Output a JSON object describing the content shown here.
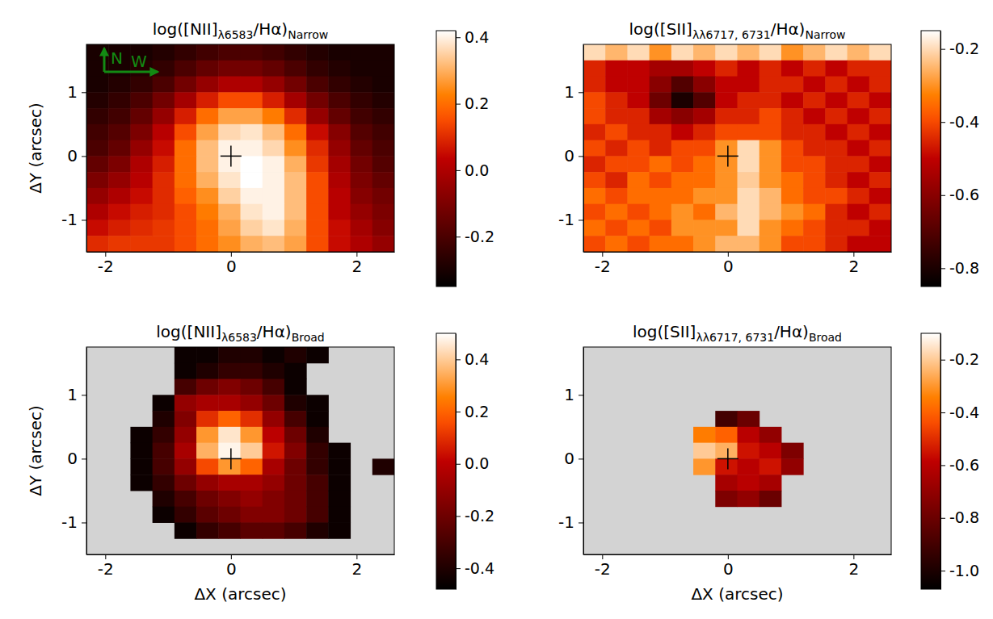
{
  "chart_data": [
    {
      "type": "heatmap",
      "title": [
        "log([NII]",
        "λ6583",
        "/Hα)",
        "Narrow"
      ],
      "ylabel": "ΔY (arcsec)",
      "annotations": [
        "N",
        "W"
      ],
      "xlim": [
        -2.3,
        2.6
      ],
      "ylim": [
        -1.5,
        1.75
      ],
      "xticks": [
        -2,
        0,
        2
      ],
      "yticks": [
        -1,
        0,
        1
      ],
      "center": [
        0,
        0
      ],
      "x_edges": [
        -2.3,
        -1.95,
        -1.6,
        -1.25,
        -0.9,
        -0.55,
        -0.2,
        0.15,
        0.5,
        0.85,
        1.2,
        1.55,
        1.9,
        2.25,
        2.6
      ],
      "y_edges": [
        1.75,
        1.5,
        1.25,
        1.0,
        0.75,
        0.5,
        0.25,
        0.0,
        -0.25,
        -0.5,
        -0.75,
        -1.0,
        -1.25,
        -1.5
      ],
      "cells": [
        [
          -0.3,
          -0.3,
          -0.3,
          -0.28,
          -0.25,
          -0.22,
          -0.2,
          -0.2,
          -0.22,
          -0.25,
          -0.28,
          -0.3,
          -0.3,
          -0.3
        ],
        [
          -0.3,
          -0.3,
          -0.28,
          -0.25,
          -0.2,
          -0.15,
          -0.12,
          -0.12,
          -0.15,
          -0.2,
          -0.25,
          -0.28,
          -0.3,
          -0.3
        ],
        [
          -0.3,
          -0.28,
          -0.25,
          -0.2,
          -0.12,
          -0.05,
          0.0,
          0.0,
          -0.05,
          -0.12,
          -0.2,
          -0.25,
          -0.28,
          -0.3
        ],
        [
          -0.28,
          -0.25,
          -0.2,
          -0.12,
          -0.02,
          0.08,
          0.15,
          0.15,
          0.08,
          -0.02,
          -0.12,
          -0.2,
          -0.25,
          -0.28
        ],
        [
          -0.25,
          -0.22,
          -0.15,
          -0.05,
          0.08,
          0.2,
          0.28,
          0.28,
          0.22,
          0.1,
          -0.05,
          -0.15,
          -0.22,
          -0.25
        ],
        [
          -0.22,
          -0.18,
          -0.1,
          0.02,
          0.15,
          0.28,
          0.36,
          0.38,
          0.32,
          0.2,
          0.05,
          -0.08,
          -0.18,
          -0.22
        ],
        [
          -0.2,
          -0.15,
          -0.05,
          0.05,
          0.2,
          0.32,
          0.4,
          0.4,
          0.36,
          0.25,
          0.1,
          -0.05,
          -0.15,
          -0.2
        ],
        [
          -0.15,
          -0.1,
          0.0,
          0.08,
          0.2,
          0.32,
          0.4,
          0.42,
          0.4,
          0.3,
          0.12,
          -0.02,
          -0.12,
          -0.18
        ],
        [
          -0.1,
          -0.05,
          0.02,
          0.1,
          0.2,
          0.3,
          0.38,
          0.42,
          0.4,
          0.32,
          0.15,
          0.0,
          -0.1,
          -0.15
        ],
        [
          -0.05,
          0.0,
          0.05,
          0.1,
          0.18,
          0.25,
          0.35,
          0.4,
          0.4,
          0.32,
          0.15,
          0.02,
          -0.08,
          -0.12
        ],
        [
          0.0,
          0.05,
          0.08,
          0.1,
          0.15,
          0.22,
          0.3,
          0.38,
          0.4,
          0.32,
          0.15,
          0.02,
          -0.05,
          -0.1
        ],
        [
          0.05,
          0.08,
          0.1,
          0.12,
          0.15,
          0.2,
          0.28,
          0.35,
          0.38,
          0.3,
          0.15,
          0.05,
          -0.02,
          -0.08
        ],
        [
          0.1,
          0.12,
          0.12,
          0.12,
          0.15,
          0.2,
          0.25,
          0.3,
          0.32,
          0.28,
          0.15,
          0.05,
          0.0,
          -0.05
        ]
      ],
      "colorbar_lim": [
        -0.35,
        0.42
      ],
      "colorbar_ticks": [
        -0.2,
        {
          "value": 0,
          "label": "0.0"
        },
        0.2,
        0.4
      ]
    },
    {
      "type": "heatmap",
      "title": [
        "log([SII]",
        "λλ6717, 6731",
        "/Hα)",
        "Narrow"
      ],
      "xlim": [
        -2.3,
        2.6
      ],
      "ylim": [
        -1.5,
        1.75
      ],
      "xticks": [
        -2,
        0,
        2
      ],
      "yticks": [
        -1,
        0,
        1
      ],
      "center": [
        0,
        0
      ],
      "x_edges": [
        -2.3,
        -1.95,
        -1.6,
        -1.25,
        -0.9,
        -0.55,
        -0.2,
        0.15,
        0.5,
        0.85,
        1.2,
        1.55,
        1.9,
        2.25,
        2.6
      ],
      "y_edges": [
        1.75,
        1.5,
        1.25,
        1.0,
        0.75,
        0.5,
        0.25,
        0.0,
        -0.25,
        -0.5,
        -0.75,
        -1.0,
        -1.25,
        -1.5
      ],
      "cells": [
        [
          -0.2,
          -0.25,
          -0.2,
          -0.3,
          -0.2,
          -0.25,
          -0.2,
          -0.25,
          -0.2,
          -0.3,
          -0.25,
          -0.2,
          -0.25,
          -0.2
        ],
        [
          -0.45,
          -0.5,
          -0.5,
          -0.55,
          -0.55,
          -0.5,
          -0.45,
          -0.5,
          -0.45,
          -0.5,
          -0.45,
          -0.5,
          -0.45,
          -0.45
        ],
        [
          -0.45,
          -0.5,
          -0.5,
          -0.6,
          -0.7,
          -0.6,
          -0.5,
          -0.5,
          -0.45,
          -0.45,
          -0.5,
          -0.45,
          -0.5,
          -0.45
        ],
        [
          -0.4,
          -0.45,
          -0.5,
          -0.65,
          -0.8,
          -0.7,
          -0.5,
          -0.45,
          -0.45,
          -0.5,
          -0.45,
          -0.5,
          -0.45,
          -0.5
        ],
        [
          -0.4,
          -0.45,
          -0.45,
          -0.55,
          -0.6,
          -0.55,
          -0.45,
          -0.45,
          -0.4,
          -0.45,
          -0.5,
          -0.45,
          -0.5,
          -0.45
        ],
        [
          -0.45,
          -0.4,
          -0.45,
          -0.45,
          -0.5,
          -0.45,
          -0.4,
          -0.4,
          -0.4,
          -0.45,
          -0.45,
          -0.5,
          -0.45,
          -0.5
        ],
        [
          -0.4,
          -0.45,
          -0.4,
          -0.45,
          -0.4,
          -0.4,
          -0.3,
          -0.2,
          -0.3,
          -0.4,
          -0.45,
          -0.45,
          -0.5,
          -0.45
        ],
        [
          -0.45,
          -0.4,
          -0.4,
          -0.35,
          -0.4,
          -0.35,
          -0.3,
          -0.2,
          -0.3,
          -0.4,
          -0.4,
          -0.45,
          -0.45,
          -0.5
        ],
        [
          -0.4,
          -0.45,
          -0.35,
          -0.4,
          -0.35,
          -0.35,
          -0.3,
          -0.22,
          -0.3,
          -0.35,
          -0.4,
          -0.45,
          -0.5,
          -0.45
        ],
        [
          -0.35,
          -0.4,
          -0.35,
          -0.35,
          -0.35,
          -0.3,
          -0.3,
          -0.2,
          -0.25,
          -0.35,
          -0.4,
          -0.4,
          -0.45,
          -0.5
        ],
        [
          -0.4,
          -0.35,
          -0.4,
          -0.35,
          -0.3,
          -0.35,
          -0.25,
          -0.2,
          -0.25,
          -0.3,
          -0.35,
          -0.45,
          -0.5,
          -0.45
        ],
        [
          -0.35,
          -0.4,
          -0.35,
          -0.4,
          -0.3,
          -0.3,
          -0.3,
          -0.2,
          -0.3,
          -0.35,
          -0.4,
          -0.45,
          -0.45,
          -0.5
        ],
        [
          -0.4,
          -0.35,
          -0.4,
          -0.35,
          -0.35,
          -0.3,
          -0.25,
          -0.25,
          -0.3,
          -0.4,
          -0.4,
          -0.45,
          -0.5,
          -0.5
        ]
      ],
      "colorbar_lim": [
        -0.85,
        -0.15
      ],
      "colorbar_ticks": [
        -0.8,
        -0.6,
        -0.4,
        -0.2
      ]
    },
    {
      "type": "heatmap",
      "title": [
        "log([NII]",
        "λ6583",
        "/Hα)",
        "Broad"
      ],
      "xlabel": "ΔX (arcsec)",
      "ylabel": "ΔY (arcsec)",
      "xlim": [
        -2.3,
        2.6
      ],
      "ylim": [
        -1.5,
        1.75
      ],
      "xticks": [
        -2,
        0,
        2
      ],
      "yticks": [
        -1,
        0,
        1
      ],
      "center": [
        0,
        0
      ],
      "x_edges": [
        -2.3,
        -1.95,
        -1.6,
        -1.25,
        -0.9,
        -0.55,
        -0.2,
        0.15,
        0.5,
        0.85,
        1.2,
        1.55,
        1.9,
        2.25,
        2.6
      ],
      "y_edges": [
        1.75,
        1.5,
        1.25,
        1.0,
        0.75,
        0.5,
        0.25,
        0.0,
        -0.25,
        -0.5,
        -0.75,
        -1.0,
        -1.25,
        -1.5
      ],
      "cells": [
        [
          null,
          null,
          null,
          null,
          -0.45,
          -0.45,
          -0.4,
          -0.4,
          -0.45,
          -0.4,
          -0.45,
          null,
          null,
          null
        ],
        [
          null,
          null,
          null,
          null,
          -0.45,
          -0.4,
          -0.35,
          -0.35,
          -0.4,
          -0.45,
          null,
          null,
          null,
          null
        ],
        [
          null,
          null,
          null,
          null,
          -0.3,
          -0.2,
          -0.15,
          -0.2,
          -0.3,
          -0.45,
          null,
          null,
          null,
          null
        ],
        [
          null,
          null,
          null,
          -0.45,
          -0.1,
          -0.05,
          -0.05,
          -0.1,
          -0.2,
          -0.4,
          -0.45,
          null,
          null,
          null
        ],
        [
          null,
          null,
          null,
          -0.4,
          -0.15,
          0.1,
          0.2,
          0.1,
          -0.1,
          -0.3,
          -0.45,
          null,
          null,
          null
        ],
        [
          null,
          null,
          -0.45,
          -0.35,
          -0.1,
          0.3,
          0.45,
          0.3,
          0.0,
          -0.2,
          -0.4,
          null,
          null,
          null
        ],
        [
          null,
          null,
          -0.45,
          -0.3,
          -0.05,
          0.35,
          0.48,
          0.4,
          0.05,
          -0.15,
          -0.35,
          -0.45,
          null,
          null
        ],
        [
          null,
          null,
          -0.45,
          -0.3,
          -0.1,
          0.15,
          0.3,
          0.2,
          -0.05,
          -0.2,
          -0.35,
          -0.45,
          null,
          -0.4
        ],
        [
          null,
          null,
          -0.45,
          -0.35,
          -0.2,
          -0.1,
          -0.05,
          -0.05,
          -0.1,
          -0.2,
          -0.3,
          -0.45,
          null,
          null
        ],
        [
          null,
          null,
          null,
          -0.4,
          -0.3,
          -0.2,
          -0.15,
          -0.1,
          -0.15,
          -0.2,
          -0.3,
          -0.45,
          null,
          null
        ],
        [
          null,
          null,
          null,
          -0.45,
          -0.35,
          -0.25,
          -0.2,
          -0.15,
          -0.15,
          -0.2,
          -0.3,
          -0.45,
          null,
          null
        ],
        [
          null,
          null,
          null,
          null,
          -0.45,
          -0.35,
          -0.3,
          -0.25,
          -0.25,
          -0.3,
          -0.4,
          -0.45,
          null,
          null
        ],
        [
          null,
          null,
          null,
          null,
          null,
          null,
          null,
          null,
          null,
          null,
          null,
          null,
          null,
          null
        ]
      ],
      "colorbar_lim": [
        -0.48,
        0.5
      ],
      "colorbar_ticks": [
        -0.4,
        -0.2,
        {
          "value": 0,
          "label": "0.0"
        },
        0.2,
        0.4
      ]
    },
    {
      "type": "heatmap",
      "title": [
        "log([SII]",
        "λλ6717, 6731",
        "/Hα)",
        "Broad"
      ],
      "xlabel": "ΔX (arcsec)",
      "xlim": [
        -2.3,
        2.6
      ],
      "ylim": [
        -1.5,
        1.75
      ],
      "xticks": [
        -2,
        0,
        2
      ],
      "yticks": [
        -1,
        0,
        1
      ],
      "center": [
        0,
        0
      ],
      "x_edges": [
        -2.3,
        -1.95,
        -1.6,
        -1.25,
        -0.9,
        -0.55,
        -0.2,
        0.15,
        0.5,
        0.85,
        1.2,
        1.55,
        1.9,
        2.25,
        2.6
      ],
      "y_edges": [
        1.75,
        1.5,
        1.25,
        1.0,
        0.75,
        0.5,
        0.25,
        0.0,
        -0.25,
        -0.5,
        -0.75,
        -1.0,
        -1.25,
        -1.5
      ],
      "cells": [
        [
          null,
          null,
          null,
          null,
          null,
          null,
          null,
          null,
          null,
          null,
          null,
          null,
          null,
          null
        ],
        [
          null,
          null,
          null,
          null,
          null,
          null,
          null,
          null,
          null,
          null,
          null,
          null,
          null,
          null
        ],
        [
          null,
          null,
          null,
          null,
          null,
          null,
          null,
          null,
          null,
          null,
          null,
          null,
          null,
          null
        ],
        [
          null,
          null,
          null,
          null,
          null,
          null,
          null,
          null,
          null,
          null,
          null,
          null,
          null,
          null
        ],
        [
          null,
          null,
          null,
          null,
          null,
          null,
          -0.9,
          -0.8,
          null,
          null,
          null,
          null,
          null,
          null
        ],
        [
          null,
          null,
          null,
          null,
          null,
          -0.35,
          -0.4,
          -0.6,
          -0.7,
          null,
          null,
          null,
          null,
          null
        ],
        [
          null,
          null,
          null,
          null,
          null,
          -0.2,
          -0.25,
          -0.55,
          -0.6,
          -0.75,
          null,
          null,
          null,
          null
        ],
        [
          null,
          null,
          null,
          null,
          null,
          -0.3,
          -0.55,
          -0.6,
          -0.55,
          -0.7,
          null,
          null,
          null,
          null
        ],
        [
          null,
          null,
          null,
          null,
          null,
          null,
          -0.65,
          -0.6,
          -0.65,
          null,
          null,
          null,
          null,
          null
        ],
        [
          null,
          null,
          null,
          null,
          null,
          null,
          -0.75,
          -0.7,
          -0.8,
          null,
          null,
          null,
          null,
          null
        ],
        [
          null,
          null,
          null,
          null,
          null,
          null,
          null,
          null,
          null,
          null,
          null,
          null,
          null,
          null
        ],
        [
          null,
          null,
          null,
          null,
          null,
          null,
          null,
          null,
          null,
          null,
          null,
          null,
          null,
          null
        ],
        [
          null,
          null,
          null,
          null,
          null,
          null,
          null,
          null,
          null,
          null,
          null,
          null,
          null,
          null
        ]
      ],
      "colorbar_lim": [
        -1.07,
        -0.1
      ],
      "colorbar_ticks": [
        {
          "value": -1,
          "label": "-1.0"
        },
        -0.8,
        -0.6,
        -0.4,
        -0.2
      ]
    }
  ]
}
